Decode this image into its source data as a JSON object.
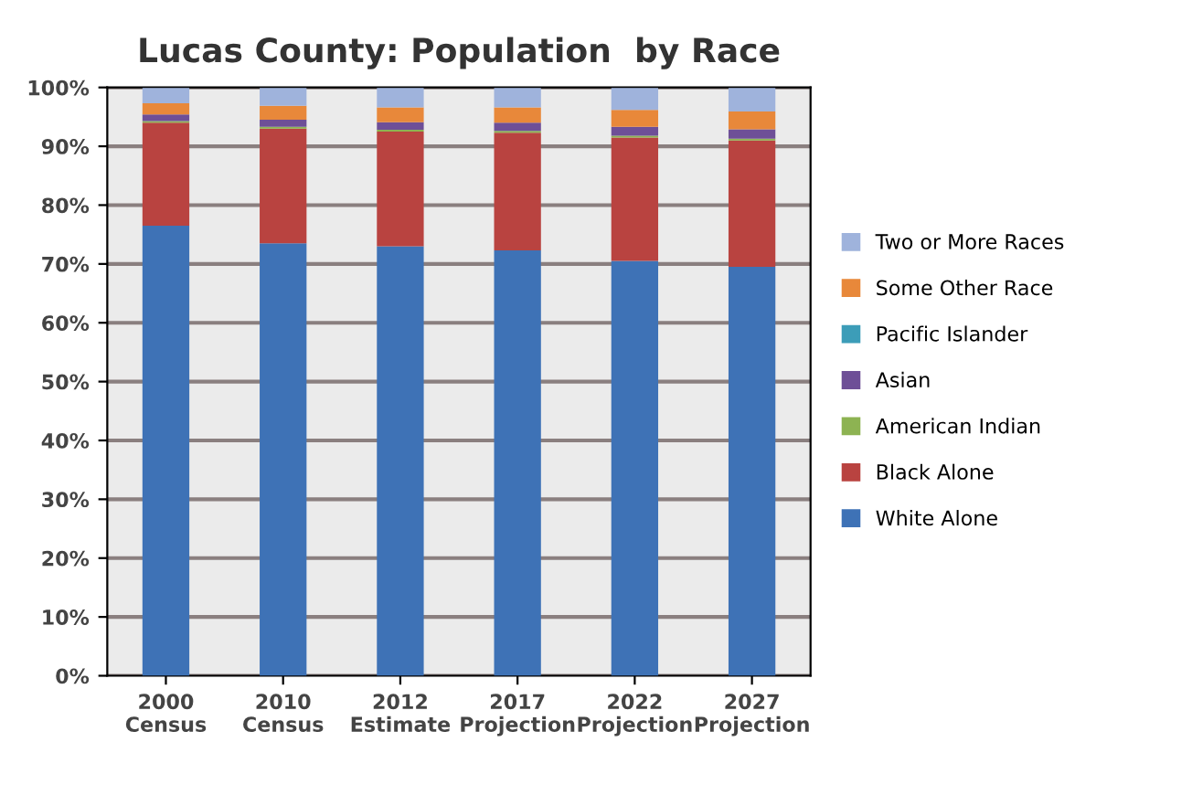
{
  "chart_data": {
    "type": "bar",
    "stacked": true,
    "title": "Lucas County: Population  by Race",
    "categories": [
      "2000\nCensus",
      "2010\nCensus",
      "2012\nEstimate",
      "2017\nProjection",
      "2022\nProjection",
      "2027\nProjection"
    ],
    "series": [
      {
        "name": "White Alone",
        "color": "#3e72b6",
        "values": [
          76.5,
          73.5,
          73,
          72.3,
          70.5,
          69.5
        ]
      },
      {
        "name": "Black Alone",
        "color": "#b94340",
        "values": [
          17.5,
          19.5,
          19.5,
          20,
          21,
          21.5
        ]
      },
      {
        "name": "American Indian",
        "color": "#8db352",
        "values": [
          0.3,
          0.3,
          0.3,
          0.3,
          0.3,
          0.3
        ]
      },
      {
        "name": "Asian",
        "color": "#6e4f97",
        "values": [
          1.1,
          1.2,
          1.3,
          1.4,
          1.5,
          1.6
        ]
      },
      {
        "name": "Pacific Islander",
        "color": "#3c9db8",
        "values": [
          null,
          null,
          null,
          null,
          null,
          null
        ]
      },
      {
        "name": "Some Other Race",
        "color": "#e8883a",
        "values": [
          1.9,
          2.4,
          2.5,
          2.6,
          2.9,
          3.0
        ]
      },
      {
        "name": "Two or More Races",
        "color": "#9fb3dc",
        "values": [
          2.6,
          3.0,
          3.3,
          3.3,
          3.7,
          4.0
        ]
      }
    ],
    "ylim": [
      0,
      100
    ],
    "yticks": [
      {
        "value": 0,
        "label": "0%"
      },
      {
        "value": 10,
        "label": "10%"
      },
      {
        "value": 20,
        "label": "20%"
      },
      {
        "value": 30,
        "label": "30%"
      },
      {
        "value": 40,
        "label": "40%"
      },
      {
        "value": 50,
        "label": "50%"
      },
      {
        "value": 60,
        "label": "60%"
      },
      {
        "value": 70,
        "label": "70%"
      },
      {
        "value": 80,
        "label": "80%"
      },
      {
        "value": 90,
        "label": "90%"
      },
      {
        "value": 100,
        "label": "100%"
      }
    ],
    "grid": "y",
    "legend": "right"
  }
}
